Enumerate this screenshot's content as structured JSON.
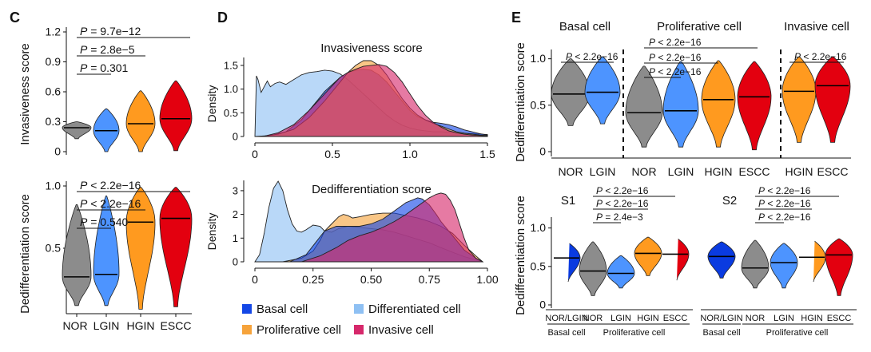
{
  "panel_letters": {
    "c": "C",
    "d": "D",
    "e": "E"
  },
  "colors": {
    "NOR": "#8c8c8c",
    "LGIN": "#4d94ff",
    "HGIN": "#ff9a1f",
    "ESCC": "#e3000f",
    "Basal cell": "#1447e6",
    "Differentiated cell": "#8ec0f3",
    "Proliferative cell": "#f6a33b",
    "Invasive cell": "#d6286b"
  },
  "legend": [
    "Basal cell",
    "Differentiated cell",
    "Proliferative cell",
    "Invasive cell"
  ],
  "chart_data": [
    {
      "id": "C-top",
      "type": "violin",
      "categories": [
        "NOR",
        "LGIN",
        "HGIN",
        "ESCC"
      ],
      "ylabel": "Invasiveness score",
      "ylim": [
        0,
        1.2
      ],
      "yticks": [
        "0",
        "0.3",
        "0.6",
        "0.9",
        "1.2"
      ],
      "ytick_values": [
        0,
        0.3,
        0.6,
        0.9,
        1.2
      ],
      "medians": [
        0.24,
        0.21,
        0.28,
        0.33
      ],
      "min": [
        0.13,
        0.0,
        0.0,
        0.01
      ],
      "max": [
        0.3,
        0.43,
        0.61,
        0.71
      ],
      "comparisons": [
        {
          "label": "P = 9.7e−12",
          "italic": "P",
          "rest": " = 9.7e−12",
          "from": "NOR",
          "to": "ESCC"
        },
        {
          "label": "P = 2.8e−5",
          "italic": "P",
          "rest": " = 2.8e−5",
          "from": "NOR",
          "to": "HGIN"
        },
        {
          "label": "P = 0.301",
          "italic": "P",
          "rest": " = 0.301",
          "from": "NOR",
          "to": "LGIN"
        }
      ]
    },
    {
      "id": "C-bottom",
      "type": "violin",
      "categories": [
        "NOR",
        "LGIN",
        "HGIN",
        "ESCC"
      ],
      "ylabel": "Dedifferentiation score",
      "ylim": [
        0,
        1.0
      ],
      "yticks": [
        "0.5",
        "1.0"
      ],
      "ytick_values": [
        0.5,
        1.0
      ],
      "medians": [
        0.27,
        0.29,
        0.71,
        0.74
      ],
      "min": [
        0.04,
        0.04,
        0.01,
        0.03
      ],
      "max": [
        0.85,
        0.92,
        0.99,
        0.99
      ],
      "comparisons": [
        {
          "label": "P < 2.2e−16",
          "italic": "P",
          "rest": " < 2.2e−16",
          "from": "NOR",
          "to": "ESCC"
        },
        {
          "label": "P < 2.2e−16",
          "italic": "P",
          "rest": " < 2.2e−16",
          "from": "NOR",
          "to": "HGIN"
        },
        {
          "label": "P = 0.540",
          "italic": "P",
          "rest": " = 0.540",
          "from": "NOR",
          "to": "LGIN"
        }
      ]
    },
    {
      "id": "D-top",
      "type": "area",
      "title": "Invasiveness score",
      "ylabel": "Density",
      "xlim": [
        0,
        1.5
      ],
      "ylim": [
        0,
        1.6
      ],
      "xticks": [
        "0",
        "0.5",
        "1.0",
        "1.5"
      ],
      "xtick_values": [
        0,
        0.5,
        1.0,
        1.5
      ],
      "yticks": [
        "0",
        "0.5",
        "1.0",
        "1.5"
      ],
      "ytick_values": [
        0,
        0.5,
        1.0,
        1.5
      ],
      "series": [
        {
          "name": "Differentiated cell",
          "color": "#8ec0f3",
          "x": [
            0,
            0.01,
            0.02,
            0.04,
            0.06,
            0.08,
            0.1,
            0.13,
            0.16,
            0.2,
            0.25,
            0.3,
            0.35,
            0.4,
            0.45,
            0.5,
            0.55,
            0.6,
            0.65,
            0.7,
            0.75,
            0.8,
            0.85,
            0.9,
            0.95,
            1.0,
            1.05,
            1.1,
            1.15,
            1.2,
            1.25,
            1.3,
            1.35,
            1.4,
            1.45,
            1.5
          ],
          "y": [
            0,
            1.28,
            1.2,
            0.93,
            1.05,
            1.17,
            1.05,
            1.12,
            1.15,
            1.1,
            1.2,
            1.3,
            1.35,
            1.37,
            1.4,
            1.38,
            1.32,
            1.2,
            1.05,
            0.9,
            0.75,
            0.6,
            0.45,
            0.33,
            0.24,
            0.18,
            0.14,
            0.12,
            0.1,
            0.1,
            0.09,
            0.08,
            0.07,
            0.06,
            0.05,
            0.04
          ]
        },
        {
          "name": "Basal cell",
          "color": "#1447e6",
          "x": [
            0,
            0.1,
            0.2,
            0.3,
            0.35,
            0.4,
            0.45,
            0.5,
            0.55,
            0.6,
            0.65,
            0.7,
            0.75,
            0.8,
            0.85,
            0.9,
            0.95,
            1.0,
            1.05,
            1.1,
            1.15,
            1.2,
            1.25,
            1.3,
            1.35,
            1.4,
            1.45,
            1.5
          ],
          "y": [
            0,
            0.02,
            0.1,
            0.35,
            0.55,
            0.75,
            0.95,
            1.1,
            1.25,
            1.35,
            1.4,
            1.42,
            1.4,
            1.3,
            1.15,
            0.95,
            0.75,
            0.55,
            0.42,
            0.35,
            0.3,
            0.28,
            0.25,
            0.2,
            0.14,
            0.1,
            0.06,
            0.03
          ]
        },
        {
          "name": "Proliferative cell",
          "color": "#f6a33b",
          "x": [
            0.05,
            0.15,
            0.25,
            0.35,
            0.45,
            0.5,
            0.55,
            0.6,
            0.65,
            0.7,
            0.75,
            0.8,
            0.85,
            0.9,
            0.95,
            1.0,
            1.05,
            1.1,
            1.15,
            1.2,
            1.25,
            1.3,
            1.35,
            1.4,
            1.45,
            1.5
          ],
          "y": [
            0,
            0.05,
            0.15,
            0.4,
            0.75,
            0.95,
            1.15,
            1.35,
            1.5,
            1.6,
            1.6,
            1.5,
            1.3,
            1.05,
            0.8,
            0.6,
            0.45,
            0.35,
            0.28,
            0.22,
            0.16,
            0.1,
            0.07,
            0.05,
            0.03,
            0.02
          ]
        },
        {
          "name": "Invasive cell",
          "color": "#d6286b",
          "x": [
            0.05,
            0.15,
            0.25,
            0.35,
            0.45,
            0.55,
            0.6,
            0.65,
            0.7,
            0.75,
            0.8,
            0.85,
            0.9,
            0.95,
            1.0,
            1.05,
            1.1,
            1.15,
            1.2,
            1.25,
            1.3,
            1.35,
            1.4,
            1.45,
            1.5
          ],
          "y": [
            0,
            0.08,
            0.25,
            0.55,
            0.9,
            1.25,
            1.35,
            1.42,
            1.48,
            1.5,
            1.52,
            1.48,
            1.35,
            1.15,
            0.9,
            0.65,
            0.45,
            0.3,
            0.2,
            0.12,
            0.08,
            0.05,
            0.03,
            0.02,
            0.01
          ]
        }
      ]
    },
    {
      "id": "D-bottom",
      "type": "area",
      "title": "Dedifferentiation score",
      "ylabel": "Density",
      "xlim": [
        0,
        1.0
      ],
      "ylim": [
        0,
        3.3
      ],
      "xticks": [
        "0",
        "0.25",
        "0.50",
        "0.75",
        "1.00"
      ],
      "xtick_values": [
        0,
        0.25,
        0.5,
        0.75,
        1.0
      ],
      "yticks": [
        "0",
        "1",
        "2",
        "3"
      ],
      "ytick_values": [
        0,
        1,
        2,
        3
      ],
      "series": [
        {
          "name": "Differentiated cell",
          "color": "#8ec0f3",
          "x": [
            0.0,
            0.02,
            0.04,
            0.06,
            0.08,
            0.1,
            0.12,
            0.14,
            0.16,
            0.18,
            0.2,
            0.22,
            0.25,
            0.28,
            0.3,
            0.33,
            0.36,
            0.4,
            0.45,
            0.5,
            0.55,
            0.6,
            0.65,
            0.7,
            0.75,
            0.8,
            0.85,
            0.9,
            0.95,
            0.98
          ],
          "y": [
            0,
            0.3,
            1.2,
            2.3,
            3.1,
            3.4,
            3.0,
            2.2,
            1.6,
            1.3,
            1.25,
            1.35,
            1.55,
            1.5,
            1.3,
            1.25,
            1.4,
            1.5,
            1.45,
            1.4,
            1.35,
            1.25,
            1.1,
            0.95,
            0.8,
            0.6,
            0.4,
            0.22,
            0.08,
            0
          ]
        },
        {
          "name": "Proliferative cell",
          "color": "#f6a33b",
          "x": [
            0.12,
            0.2,
            0.25,
            0.28,
            0.3,
            0.33,
            0.36,
            0.38,
            0.4,
            0.42,
            0.45,
            0.5,
            0.55,
            0.6,
            0.65,
            0.7,
            0.75,
            0.8,
            0.85,
            0.9,
            0.95,
            0.98
          ],
          "y": [
            0,
            0.15,
            0.45,
            0.9,
            1.3,
            1.6,
            1.9,
            2.0,
            1.95,
            1.85,
            1.9,
            2.0,
            2.05,
            2.05,
            1.95,
            1.85,
            1.7,
            1.5,
            1.2,
            0.7,
            0.25,
            0
          ]
        },
        {
          "name": "Basal cell",
          "color": "#1447e6",
          "x": [
            0.15,
            0.22,
            0.26,
            0.3,
            0.35,
            0.4,
            0.45,
            0.5,
            0.55,
            0.6,
            0.65,
            0.7,
            0.72,
            0.75,
            0.78,
            0.8,
            0.85,
            0.9,
            0.95,
            0.98
          ],
          "y": [
            0,
            0.3,
            0.8,
            1.3,
            1.5,
            1.5,
            1.5,
            1.6,
            1.8,
            2.15,
            2.5,
            2.7,
            2.65,
            2.4,
            2.0,
            1.7,
            1.1,
            0.5,
            0.15,
            0
          ]
        },
        {
          "name": "Invasive cell",
          "color": "#d6286b",
          "x": [
            0.2,
            0.28,
            0.35,
            0.4,
            0.45,
            0.5,
            0.55,
            0.6,
            0.65,
            0.7,
            0.75,
            0.78,
            0.8,
            0.82,
            0.84,
            0.86,
            0.88,
            0.9,
            0.92,
            0.95,
            0.98
          ],
          "y": [
            0,
            0.25,
            0.6,
            0.9,
            1.1,
            1.25,
            1.45,
            1.7,
            2.0,
            2.35,
            2.7,
            2.85,
            2.9,
            2.85,
            2.6,
            2.2,
            1.6,
            1.0,
            0.5,
            0.15,
            0
          ]
        }
      ]
    },
    {
      "id": "E-top",
      "type": "violin",
      "ylabel": "Dedifferentiation score",
      "ylim": [
        0,
        1.1
      ],
      "yticks": [
        "0",
        "0.5",
        "1.0"
      ],
      "ytick_values": [
        0,
        0.5,
        1.0
      ],
      "groups": [
        {
          "title": "Basal cell",
          "categories": [
            "NOR",
            "LGIN"
          ],
          "medians": [
            0.62,
            0.64
          ],
          "min": [
            0.28,
            0.3
          ],
          "max": [
            1.0,
            1.02
          ],
          "comparisons": [
            {
              "label": "P < 2.2e−16",
              "italic": "P",
              "rest": " < 2.2e−16",
              "from": "NOR",
              "to": "LGIN"
            }
          ]
        },
        {
          "title": "Proliferative cell",
          "categories": [
            "NOR",
            "LGIN",
            "HGIN",
            "ESCC"
          ],
          "medians": [
            0.42,
            0.44,
            0.56,
            0.59
          ],
          "min": [
            0.05,
            0.05,
            0.05,
            0.02
          ],
          "max": [
            0.92,
            0.97,
            0.98,
            0.97
          ],
          "comparisons": [
            {
              "label": "P < 2.2e−16",
              "italic": "P",
              "rest": " < 2.2e−16",
              "from": "NOR",
              "to": "ESCC"
            },
            {
              "label": "P < 2.2e−16",
              "italic": "P",
              "rest": " < 2.2e−16",
              "from": "NOR",
              "to": "HGIN"
            },
            {
              "label": "P < 2.2e−16",
              "italic": "P",
              "rest": " < 2.2e−16",
              "from": "NOR",
              "to": "LGIN"
            }
          ]
        },
        {
          "title": "Invasive cell",
          "categories": [
            "HGIN",
            "ESCC"
          ],
          "medians": [
            0.65,
            0.71
          ],
          "min": [
            0.1,
            0.1
          ],
          "max": [
            1.02,
            1.02
          ],
          "comparisons": [
            {
              "label": "P < 2.2e−16",
              "italic": "P",
              "rest": " < 2.2e−16",
              "from": "HGIN",
              "to": "ESCC"
            }
          ]
        }
      ]
    },
    {
      "id": "E-S1",
      "type": "violin",
      "title": "S1",
      "ylabel": "Dedifferentiation score",
      "ylim": [
        0,
        1.1
      ],
      "yticks": [
        "0",
        "0.5",
        "1.0"
      ],
      "ytick_values": [
        0,
        0.5,
        1.0
      ],
      "categories": [
        "NOR/LGIN",
        "NOR",
        "LGIN",
        "HGIN",
        "ESCC"
      ],
      "colors": [
        "#0a3be0",
        "#8c8c8c",
        "#4d94ff",
        "#ff9a1f",
        "#e3000f"
      ],
      "medians": [
        0.61,
        0.44,
        0.41,
        0.67,
        0.66
      ],
      "min": [
        0.3,
        0.12,
        0.22,
        0.38,
        0.32
      ],
      "max": [
        0.82,
        0.82,
        0.64,
        0.88,
        0.88
      ],
      "group_labels": [
        {
          "label": "Basal cell",
          "from": "NOR/LGIN",
          "to": "NOR/LGIN"
        },
        {
          "label": "Proliferative cell",
          "from": "NOR",
          "to": "ESCC"
        }
      ],
      "comparisons": [
        {
          "label": "P < 2.2e−16",
          "italic": "P",
          "rest": " < 2.2e−16",
          "from": "NOR",
          "to": "ESCC"
        },
        {
          "label": "P < 2.2e−16",
          "italic": "P",
          "rest": " < 2.2e−16",
          "from": "NOR",
          "to": "HGIN"
        },
        {
          "label": "P = 2.4e−3",
          "italic": "P",
          "rest": " = 2.4e−3",
          "from": "NOR",
          "to": "LGIN"
        }
      ]
    },
    {
      "id": "E-S2",
      "type": "violin",
      "title": "S2",
      "ylim": [
        0,
        1.1
      ],
      "categories": [
        "NOR/LGIN",
        "NOR",
        "LGIN",
        "HGIN",
        "ESCC"
      ],
      "colors": [
        "#0a3be0",
        "#8c8c8c",
        "#4d94ff",
        "#ff9a1f",
        "#e3000f"
      ],
      "medians": [
        0.63,
        0.48,
        0.55,
        0.62,
        0.65
      ],
      "min": [
        0.35,
        0.22,
        0.22,
        0.3,
        0.12
      ],
      "max": [
        0.82,
        0.84,
        0.8,
        0.85,
        0.86
      ],
      "group_labels": [
        {
          "label": "Basal cell",
          "from": "NOR/LGIN",
          "to": "NOR/LGIN"
        },
        {
          "label": "Proliferative cell",
          "from": "NOR",
          "to": "ESCC"
        }
      ],
      "comparisons": [
        {
          "label": "P < 2.2e−16",
          "italic": "P",
          "rest": " < 2.2e−16",
          "from": "NOR",
          "to": "ESCC"
        },
        {
          "label": "P < 2.2e−16",
          "italic": "P",
          "rest": " < 2.2e−16",
          "from": "NOR",
          "to": "HGIN"
        },
        {
          "label": "P < 2.2e−16",
          "italic": "P",
          "rest": " < 2.2e−16",
          "from": "NOR",
          "to": "LGIN"
        }
      ]
    }
  ]
}
